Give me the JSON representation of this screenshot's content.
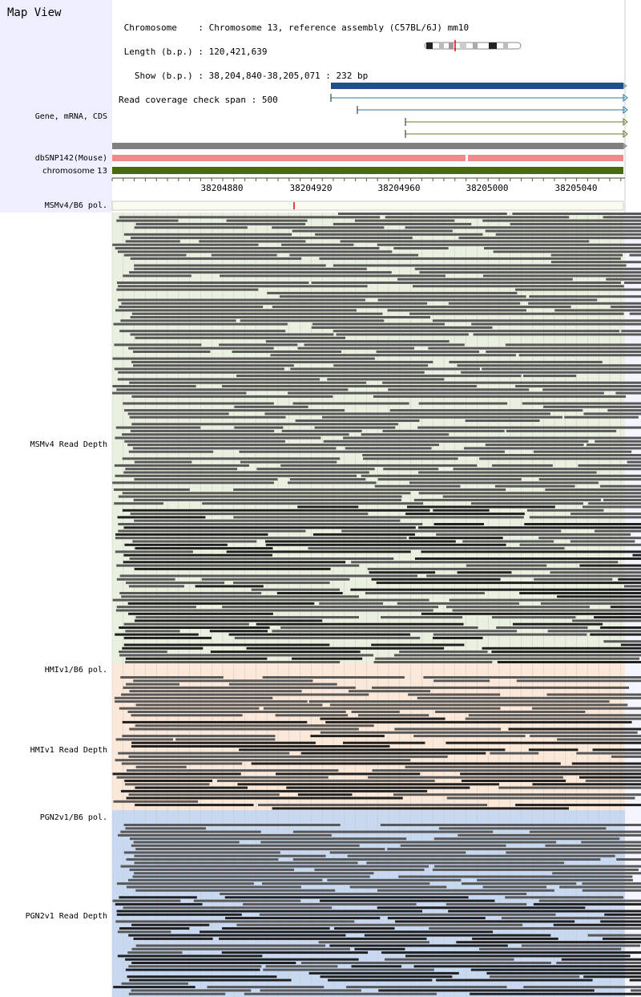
{
  "title": "Map View",
  "info": {
    "chromosome_label": "Chromosome",
    "chromosome_value": "Chromosome 13, reference assembly (C57BL/6J) mm10",
    "length_label": "Length (b.p.)",
    "length_value": "120,421,639",
    "show_label": "Show (b.p.)",
    "show_value": "38,204,840-38,205,071 : 232 bp",
    "coverage_label": "Read coverage check span",
    "coverage_value": "500"
  },
  "tracks": {
    "gene": "Gene, mRNA, CDS",
    "dbsnp": "dbSNP142(Mouse)",
    "chrom": "chromosome 13",
    "msm_pol": "MSMv4/B6 pol.",
    "msm_depth": "MSMv4 Read Depth",
    "hmi_pol": "HMIv1/B6 pol.",
    "hmi_depth": "HMIv1 Read Depth",
    "pgn_pol": "PGN2v1/B6 pol.",
    "pgn_depth": "PGN2v1 Read Depth"
  },
  "ruler": {
    "ticks": [
      "38204880",
      "38204920",
      "38204960",
      "38205000",
      "38205040"
    ]
  },
  "colors": {
    "gene_main": "#1f4e8a",
    "mrna": "#2a7a9a",
    "cds": "#6a7a30",
    "dbsnp": "#f08a8a",
    "chrom": "#4a6a10",
    "msm_bg": "#eaf0e0",
    "hmi_bg": "#fce8d8",
    "pgn_bg": "#c8d8f0",
    "read": "#585858"
  }
}
